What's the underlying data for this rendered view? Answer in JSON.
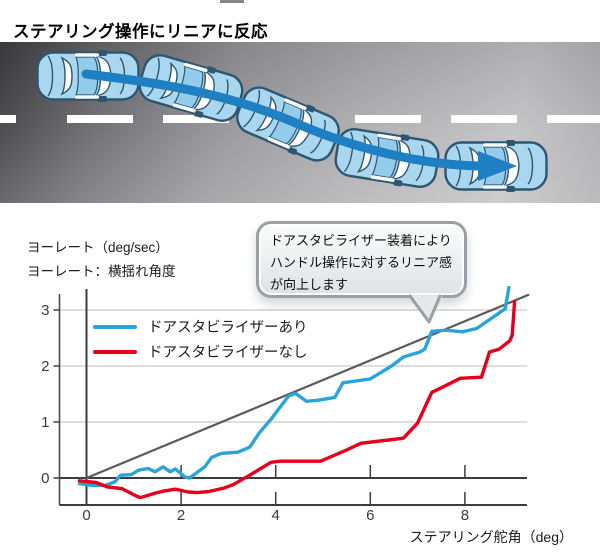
{
  "title": "ステアリング操作にリニアに反応",
  "road_diagram": {
    "description": "俯瞰図：5台の車が青い矢印に沿ってリニアに車線変更する様子",
    "car_count": 5,
    "arrow_color": "#1E7FC2",
    "car_body_color": "#A8D7EF",
    "car_roof_color": "#93CCEA",
    "car_outline_color": "#2E5670",
    "lane_marking_color": "#FFFFFF",
    "road_dark_color": "#3F3F43",
    "road_light_color": "#C3C3C5"
  },
  "y_axis_caption": {
    "line1": "ヨーレート（deg/sec）",
    "line2": "ヨーレート：横揺れ角度"
  },
  "callout": {
    "line1": "ドアスタビライザー装着により",
    "line2": "ハンドル操作に対するリニア感",
    "line3": "が向上します"
  },
  "chart_data": {
    "type": "line",
    "title": "",
    "xlabel": "ステアリング舵角（deg）",
    "ylabel": "ヨーレート（deg/sec）",
    "xlim": [
      -0.57,
      9.35
    ],
    "ylim": [
      -0.48,
      3.5
    ],
    "x_ticks": [
      0,
      2,
      4,
      6,
      8
    ],
    "y_ticks": [
      0,
      1,
      2,
      3
    ],
    "grid": "light horizontal gridlines at y=1,2,3; dark zero axes; ticks on zero line and bottom frame",
    "legend_position": "top-left inside plot",
    "series": [
      {
        "name": "ドアスタビライザーあり",
        "color": "#29A3DC",
        "in_legend": true,
        "points": [
          [
            -0.15,
            -0.1
          ],
          [
            0.1,
            -0.13
          ],
          [
            0.4,
            -0.13
          ],
          [
            0.6,
            -0.07
          ],
          [
            0.72,
            0.05
          ],
          [
            0.95,
            0.06
          ],
          [
            1.1,
            0.14
          ],
          [
            1.3,
            0.17
          ],
          [
            1.45,
            0.11
          ],
          [
            1.62,
            0.2
          ],
          [
            1.77,
            0.11
          ],
          [
            1.88,
            0.16
          ],
          [
            2.08,
            0.02
          ],
          [
            2.18,
            0.0
          ],
          [
            2.5,
            0.2
          ],
          [
            2.65,
            0.37
          ],
          [
            2.85,
            0.44
          ],
          [
            3.2,
            0.46
          ],
          [
            3.45,
            0.55
          ],
          [
            3.65,
            0.8
          ],
          [
            3.92,
            1.07
          ],
          [
            4.05,
            1.22
          ],
          [
            4.28,
            1.47
          ],
          [
            4.42,
            1.51
          ],
          [
            4.65,
            1.37
          ],
          [
            4.9,
            1.39
          ],
          [
            5.25,
            1.44
          ],
          [
            5.42,
            1.7
          ],
          [
            6.0,
            1.77
          ],
          [
            6.45,
            2.0
          ],
          [
            6.7,
            2.16
          ],
          [
            7.05,
            2.25
          ],
          [
            7.15,
            2.3
          ],
          [
            7.3,
            2.62
          ],
          [
            7.6,
            2.64
          ],
          [
            7.95,
            2.61
          ],
          [
            8.25,
            2.67
          ],
          [
            8.85,
            3.02
          ],
          [
            8.93,
            3.4
          ]
        ]
      },
      {
        "name": "ドアスタビライザーなし",
        "color": "#E60019",
        "in_legend": true,
        "points": [
          [
            -0.15,
            -0.05
          ],
          [
            0.2,
            -0.08
          ],
          [
            0.45,
            -0.16
          ],
          [
            0.75,
            -0.19
          ],
          [
            1.0,
            -0.3
          ],
          [
            1.13,
            -0.35
          ],
          [
            1.3,
            -0.31
          ],
          [
            1.45,
            -0.27
          ],
          [
            1.65,
            -0.23
          ],
          [
            1.88,
            -0.2
          ],
          [
            2.15,
            -0.25
          ],
          [
            2.35,
            -0.26
          ],
          [
            2.6,
            -0.24
          ],
          [
            2.9,
            -0.18
          ],
          [
            3.1,
            -0.12
          ],
          [
            3.45,
            0.05
          ],
          [
            3.9,
            0.28
          ],
          [
            4.1,
            0.3
          ],
          [
            4.95,
            0.3
          ],
          [
            5.5,
            0.5
          ],
          [
            5.8,
            0.62
          ],
          [
            6.4,
            0.68
          ],
          [
            6.7,
            0.71
          ],
          [
            7.0,
            0.98
          ],
          [
            7.3,
            1.53
          ],
          [
            7.55,
            1.63
          ],
          [
            7.9,
            1.78
          ],
          [
            8.35,
            1.8
          ],
          [
            8.52,
            2.25
          ],
          [
            8.72,
            2.3
          ],
          [
            8.95,
            2.45
          ],
          [
            9.0,
            2.55
          ],
          [
            9.05,
            3.15
          ]
        ]
      },
      {
        "name": "リニア参照線（ラベルなし）",
        "color": "#5A5A5A",
        "in_legend": false,
        "points": [
          [
            0,
            0
          ],
          [
            9.34,
            3.27
          ]
        ]
      }
    ]
  }
}
